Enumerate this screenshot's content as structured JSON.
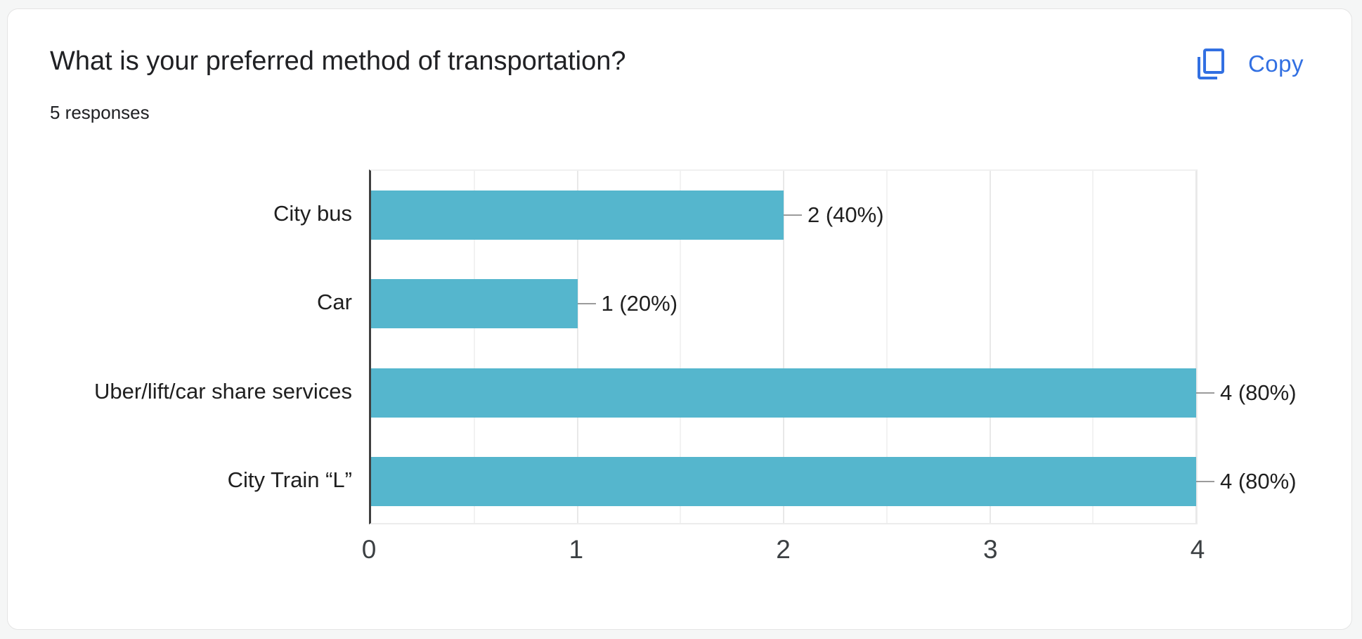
{
  "header": {
    "title": "What is your preferred method of transportation?",
    "response_count": "5 responses",
    "copy_label": "Copy"
  },
  "colors": {
    "bar": "#55b6cd",
    "copy_blue": "#3270e2",
    "axis_line": "#3f3f3f",
    "page_background": "#f5f6f6"
  },
  "chart_data": {
    "type": "bar",
    "orientation": "horizontal",
    "title": "What is your preferred method of transportation?",
    "categories": [
      "City bus",
      "Car",
      "Uber/lift/car share services",
      "City Train “L”"
    ],
    "values": [
      2,
      1,
      4,
      4
    ],
    "value_labels": [
      "2 (40%)",
      "1 (20%)",
      "4 (80%)",
      "4 (80%)"
    ],
    "x_ticks": [
      "0",
      "1",
      "2",
      "3",
      "4"
    ],
    "xlim": [
      0,
      4
    ],
    "grid_step": 0.5,
    "grid": true,
    "legend": "none",
    "xlabel": "",
    "ylabel": ""
  }
}
